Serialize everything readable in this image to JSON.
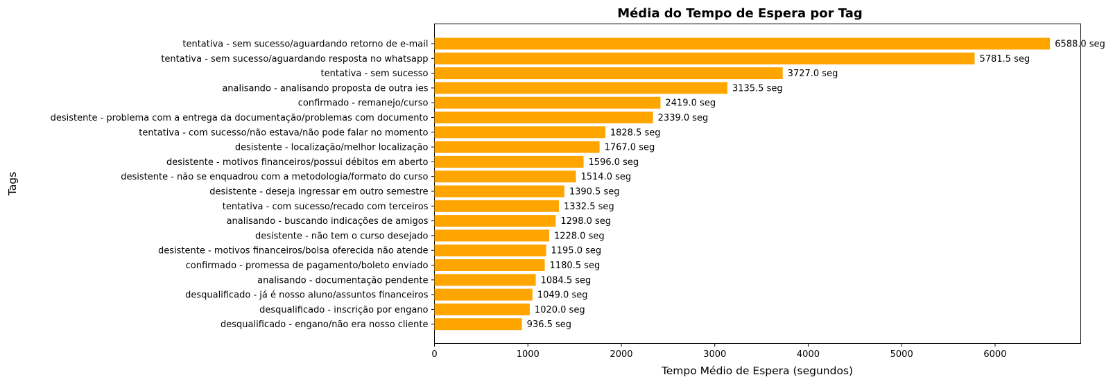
{
  "chart_data": {
    "type": "bar",
    "orientation": "horizontal",
    "title": "Média do Tempo de Espera por Tag",
    "xlabel": "Tempo Médio de Espera (segundos)",
    "ylabel": "Tags",
    "xlim": [
      0,
      6917
    ],
    "xticks": [
      0,
      1000,
      2000,
      3000,
      4000,
      5000,
      6000
    ],
    "grid": false,
    "bar_color": "#ffa500",
    "value_suffix": " seg",
    "categories": [
      "tentativa - sem sucesso/aguardando retorno de e-mail",
      "tentativa - sem sucesso/aguardando resposta no whatsapp",
      "tentativa - sem sucesso",
      "analisando - analisando proposta de outra ies",
      "confirmado - remanejo/curso",
      "desistente - problema com a entrega da documentação/problemas com documento",
      "tentativa - com sucesso/não estava/não pode falar no momento",
      "desistente - localização/melhor localização",
      "desistente - motivos financeiros/possui débitos em aberto",
      "desistente - não se enquadrou com a metodologia/formato do curso",
      "desistente - deseja ingressar em outro semestre",
      "tentativa - com sucesso/recado com terceiros",
      "analisando - buscando indicações de amigos",
      "desistente - não tem o curso desejado",
      "desistente - motivos financeiros/bolsa oferecida não atende",
      "confirmado - promessa de pagamento/boleto enviado",
      "analisando - documentação pendente",
      "desqualificado - já é nosso aluno/assuntos financeiros",
      "desqualificado - inscrição por engano",
      "desqualificado - engano/não era nosso cliente"
    ],
    "values": [
      6588.0,
      5781.5,
      3727.0,
      3135.5,
      2419.0,
      2339.0,
      1828.5,
      1767.0,
      1596.0,
      1514.0,
      1390.5,
      1332.5,
      1298.0,
      1228.0,
      1195.0,
      1180.5,
      1084.5,
      1049.0,
      1020.0,
      936.5
    ],
    "value_labels": [
      "6588.0 seg",
      "5781.5 seg",
      "3727.0 seg",
      "3135.5 seg",
      "2419.0 seg",
      "2339.0 seg",
      "1828.5 seg",
      "1767.0 seg",
      "1596.0 seg",
      "1514.0 seg",
      "1390.5 seg",
      "1332.5 seg",
      "1298.0 seg",
      "1228.0 seg",
      "1195.0 seg",
      "1180.5 seg",
      "1084.5 seg",
      "1049.0 seg",
      "1020.0 seg",
      "936.5 seg"
    ]
  }
}
